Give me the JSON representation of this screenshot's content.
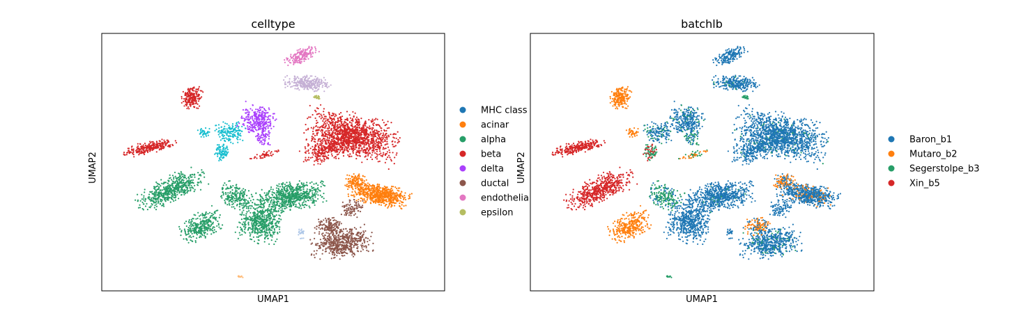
{
  "chart_data": [
    {
      "type": "scatter",
      "title": "celltype",
      "xlabel": "UMAP1",
      "ylabel": "UMAP2",
      "grid": false,
      "legend_position": "outside-right",
      "legend": [
        {
          "name": "MHC class",
          "color": "#1f77b4"
        },
        {
          "name": "acinar",
          "color": "#ff7f0e"
        },
        {
          "name": "alpha",
          "color": "#279e68"
        },
        {
          "name": "beta",
          "color": "#d62728"
        },
        {
          "name": "delta",
          "color": "#aa40fc"
        },
        {
          "name": "ductal",
          "color": "#8c564b"
        },
        {
          "name": "endothelia",
          "color": "#e377c2"
        },
        {
          "name": "epsilon",
          "color": "#b5bd61"
        }
      ],
      "extra_colors": {
        "gamma": "#17becf",
        "stellate": "#c5b0d5",
        "other": "#aec7e8",
        "misc": "#ffbb78"
      }
    },
    {
      "type": "scatter",
      "title": "batchlb",
      "xlabel": "UMAP1",
      "ylabel": "UMAP2",
      "grid": false,
      "legend_position": "outside-right",
      "legend": [
        {
          "name": "Baron_b1",
          "color": "#1f77b4"
        },
        {
          "name": "Mutaro_b2",
          "color": "#ff7f0e"
        },
        {
          "name": "Segerstolpe_b3",
          "color": "#279e68"
        },
        {
          "name": "Xin_b5",
          "color": "#d62728"
        }
      ]
    }
  ]
}
